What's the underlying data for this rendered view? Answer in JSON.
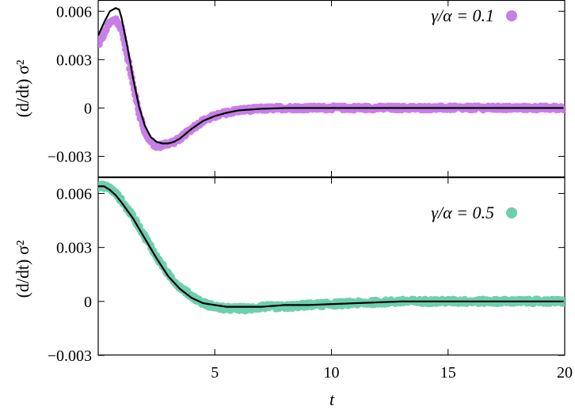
{
  "chart_data": [
    {
      "type": "scatter",
      "panel": "top",
      "ylabel": "(d/dt) σ²",
      "xlabel": "",
      "xlim": [
        0,
        20
      ],
      "ylim": [
        -0.0043,
        0.0067
      ],
      "xticks": [
        5,
        10,
        15,
        20
      ],
      "yticks": [
        -0.003,
        0,
        0.003,
        0.006
      ],
      "ytick_labels": [
        "−0.003",
        "0",
        "0.003",
        "0.006"
      ],
      "legend_position": "top-right",
      "series": [
        {
          "name": "γ/α = 0.1",
          "color": "#c77ee6",
          "kind": "points",
          "x": [
            0.0,
            0.25,
            0.5,
            0.75,
            1.0,
            1.25,
            1.5,
            1.75,
            2.0,
            2.25,
            2.5,
            2.75,
            3.0,
            3.25,
            3.5,
            3.75,
            4.0,
            4.5,
            5.0,
            5.5,
            6.0,
            7.0,
            8.0,
            9.0,
            10.0,
            12.0,
            14.0,
            16.0,
            18.0,
            20.0
          ],
          "y": [
            0.0039,
            0.0046,
            0.0053,
            0.0055,
            0.0049,
            0.0032,
            0.0014,
            -0.0003,
            -0.0015,
            -0.0021,
            -0.0024,
            -0.0023,
            -0.0022,
            -0.0021,
            -0.0019,
            -0.0016,
            -0.0013,
            -0.0008,
            -0.0005,
            -0.0003,
            -0.00015,
            -5e-05,
            0.0,
            0.0,
            0.0,
            0.0,
            0.0,
            0.0,
            0.0,
            0.0
          ]
        },
        {
          "name": "",
          "color": "#000000",
          "kind": "line",
          "x": [
            0.0,
            0.25,
            0.5,
            0.75,
            0.9,
            1.0,
            1.25,
            1.5,
            1.75,
            2.0,
            2.25,
            2.5,
            2.75,
            3.0,
            3.25,
            3.5,
            3.75,
            4.0,
            4.5,
            5.0,
            5.5,
            6.0,
            7.0,
            8.0,
            9.0,
            10.0,
            12.0,
            14.0,
            16.0,
            18.0,
            20.0
          ],
          "y": [
            0.0045,
            0.0053,
            0.006,
            0.0062,
            0.0061,
            0.0056,
            0.0038,
            0.0018,
            0.0001,
            -0.0011,
            -0.0018,
            -0.0021,
            -0.0022,
            -0.0022,
            -0.0021,
            -0.0019,
            -0.0016,
            -0.0013,
            -0.0008,
            -0.0005,
            -0.0003,
            -0.00015,
            -5e-05,
            0.0,
            0.0,
            0.0,
            0.0,
            0.0,
            0.0,
            0.0,
            0.0
          ]
        }
      ]
    },
    {
      "type": "scatter",
      "panel": "bottom",
      "ylabel": "(d/dt) σ²",
      "xlabel": "t",
      "xlim": [
        0,
        20
      ],
      "ylim": [
        -0.003,
        0.0069
      ],
      "xticks": [
        5,
        10,
        15,
        20
      ],
      "xtick_labels": [
        "5",
        "10",
        "15",
        "20"
      ],
      "yticks": [
        -0.003,
        0,
        0.003,
        0.006
      ],
      "ytick_labels": [
        "−0.003",
        "0",
        "0.003",
        "0.006"
      ],
      "legend_position": "top-right",
      "series": [
        {
          "name": "γ/α = 0.5",
          "color": "#6fcfad",
          "kind": "points",
          "x": [
            0.0,
            0.25,
            0.5,
            0.75,
            1.0,
            1.5,
            2.0,
            2.5,
            3.0,
            3.5,
            4.0,
            4.5,
            5.0,
            5.5,
            6.0,
            6.5,
            7.0,
            8.0,
            9.0,
            10.0,
            11.0,
            12.0,
            13.0,
            14.0,
            15.0,
            16.0,
            17.0,
            18.0,
            19.0,
            20.0
          ],
          "y": [
            0.0064,
            0.0064,
            0.0063,
            0.006,
            0.0056,
            0.0047,
            0.0036,
            0.0025,
            0.0015,
            0.0008,
            0.0003,
            -0.0001,
            -0.0003,
            -0.0004,
            -0.0004,
            -0.0004,
            -0.0003,
            -0.0003,
            -0.0002,
            -0.00015,
            -0.0001,
            -5e-05,
            0.0,
            0.0,
            0.0,
            0.0,
            0.0,
            0.0,
            0.0,
            0.0
          ]
        },
        {
          "name": "",
          "color": "#000000",
          "kind": "line",
          "x": [
            0.0,
            0.25,
            0.5,
            0.75,
            1.0,
            1.5,
            2.0,
            2.5,
            3.0,
            3.5,
            4.0,
            4.5,
            5.0,
            5.5,
            6.0,
            6.5,
            7.0,
            8.0,
            9.0,
            10.0,
            11.0,
            12.0,
            13.0,
            14.0,
            15.0,
            16.0,
            17.0,
            18.0,
            19.0,
            20.0
          ],
          "y": [
            0.0064,
            0.0064,
            0.0062,
            0.0059,
            0.0055,
            0.0046,
            0.0035,
            0.0024,
            0.0014,
            0.0007,
            0.0002,
            -0.0001,
            -0.0002,
            -0.0003,
            -0.0003,
            -0.0003,
            -0.0003,
            -0.0002,
            -0.0002,
            -0.00015,
            -0.0001,
            -5e-05,
            0.0,
            0.0,
            0.0,
            0.0,
            0.0,
            0.0,
            0.0,
            0.0
          ]
        }
      ]
    }
  ],
  "legend": {
    "top": "γ/α = 0.1",
    "bottom": "γ/α = 0.5"
  },
  "axis": {
    "ylabel_top": "(d/dt) σ²",
    "ylabel_bottom": "(d/dt) σ²",
    "xlabel": "t"
  }
}
